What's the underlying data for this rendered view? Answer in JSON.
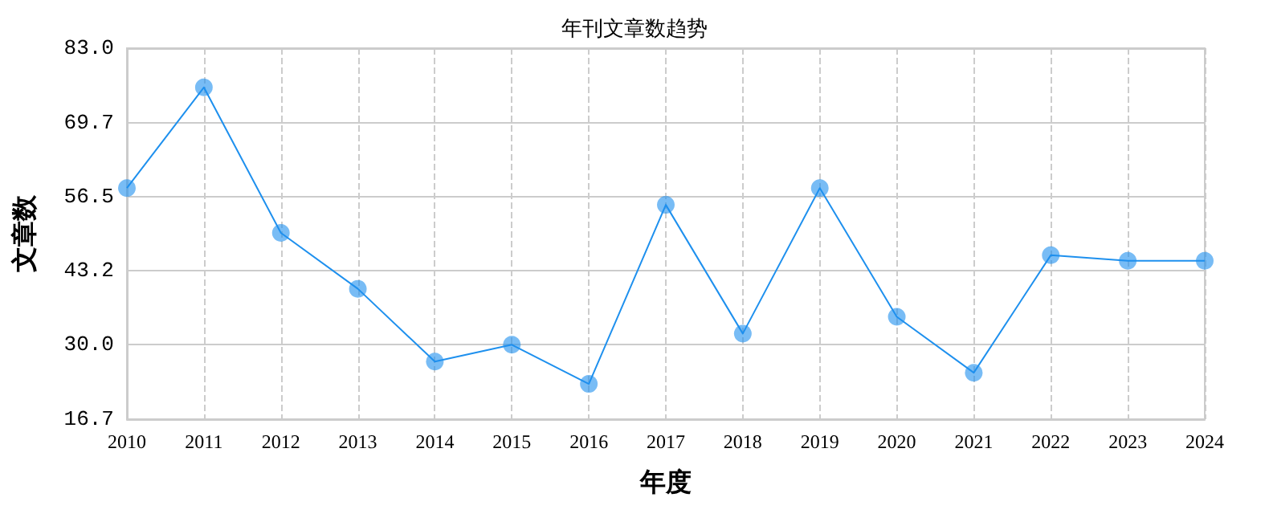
{
  "chart_data": {
    "type": "line",
    "title": "年刊文章数趋势",
    "xlabel": "年度",
    "ylabel": "文章数",
    "categories": [
      "2010",
      "2011",
      "2012",
      "2013",
      "2014",
      "2015",
      "2016",
      "2017",
      "2018",
      "2019",
      "2020",
      "2021",
      "2022",
      "2023",
      "2024"
    ],
    "series": [
      {
        "color": "#1e90ee",
        "values": [
          58,
          76,
          50,
          40,
          27,
          30,
          23,
          55,
          32,
          58,
          35,
          25,
          46,
          45,
          45
        ]
      }
    ],
    "ylim": [
      16.7,
      83.0
    ],
    "yticks": [
      {
        "value": 16.7,
        "label": "16.7"
      },
      {
        "value": 30,
        "label": "30.0"
      },
      {
        "value": 43.2,
        "label": "43.2"
      },
      {
        "value": 56.5,
        "label": "56.5"
      },
      {
        "value": 69.7,
        "label": "69.7"
      },
      {
        "value": 83,
        "label": "83.0"
      }
    ],
    "grid": true,
    "marker": "circle",
    "line_style": "solid"
  }
}
